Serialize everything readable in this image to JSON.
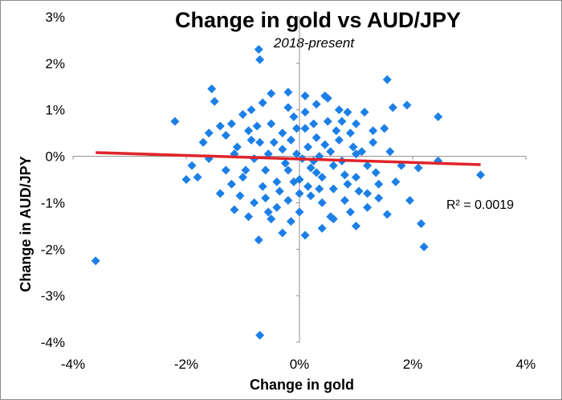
{
  "chart_data": {
    "type": "scatter",
    "title": "Change in gold vs AUD/JPY",
    "subtitle": "2018-present",
    "xlabel": "Change in gold",
    "ylabel": "Change in AUD/JPY",
    "xlim": [
      -4,
      4
    ],
    "ylim": [
      -4,
      3
    ],
    "x_ticks": [
      "-4%",
      "-2%",
      "0%",
      "2%",
      "4%"
    ],
    "y_ticks": [
      "3%",
      "2%",
      "1%",
      "0%",
      "-1%",
      "-2%",
      "-3%",
      "-4%"
    ],
    "grid": false,
    "marker_color": "#1c7fe6",
    "trendline": {
      "color": "#e0242a",
      "x": [
        -3.6,
        3.2
      ],
      "y": [
        0.08,
        -0.18
      ],
      "label": "R² = 0.0019"
    },
    "points": [
      [
        -3.6,
        -2.25
      ],
      [
        -2.2,
        0.75
      ],
      [
        -1.55,
        1.45
      ],
      [
        -1.5,
        1.18
      ],
      [
        -1.4,
        0.65
      ],
      [
        -1.15,
        -1.15
      ],
      [
        -0.72,
        2.3
      ],
      [
        -0.7,
        2.08
      ],
      [
        -0.72,
        -1.8
      ],
      [
        -0.7,
        -3.85
      ],
      [
        -0.5,
        -1.35
      ],
      [
        -0.3,
        -1.65
      ],
      [
        0.1,
        -1.7
      ],
      [
        0.4,
        -1.55
      ],
      [
        0.55,
        -1.3
      ],
      [
        1.0,
        -1.5
      ],
      [
        1.2,
        -1.1
      ],
      [
        1.55,
        1.65
      ],
      [
        1.5,
        0.6
      ],
      [
        1.65,
        1.05
      ],
      [
        1.9,
        1.1
      ],
      [
        1.95,
        -0.95
      ],
      [
        2.2,
        -1.95
      ],
      [
        2.15,
        -1.45
      ],
      [
        2.45,
        0.85
      ],
      [
        2.45,
        -0.1
      ],
      [
        3.2,
        -0.4
      ],
      [
        1.55,
        -1.25
      ],
      [
        1.4,
        -0.9
      ],
      [
        1.8,
        -0.2
      ],
      [
        -1.8,
        -0.45
      ],
      [
        -1.6,
        0.5
      ],
      [
        -1.3,
        0.45
      ],
      [
        -1.0,
        0.9
      ],
      [
        -0.85,
        1.0
      ],
      [
        -0.5,
        1.35
      ],
      [
        -0.2,
        1.38
      ],
      [
        0.1,
        1.3
      ],
      [
        0.3,
        1.12
      ],
      [
        0.5,
        1.25
      ],
      [
        0.7,
        1.0
      ],
      [
        1.0,
        0.7
      ],
      [
        1.3,
        0.3
      ],
      [
        -1.9,
        -0.2
      ],
      [
        -1.4,
        -0.8
      ],
      [
        -1.2,
        -0.6
      ],
      [
        -0.95,
        -0.3
      ],
      [
        -0.8,
        -1.0
      ],
      [
        -0.6,
        -0.9
      ],
      [
        -0.4,
        -1.1
      ],
      [
        -0.2,
        -0.95
      ],
      [
        0.0,
        -1.2
      ],
      [
        0.2,
        -0.85
      ],
      [
        0.4,
        -1.0
      ],
      [
        0.6,
        -0.7
      ],
      [
        0.8,
        -0.95
      ],
      [
        1.0,
        -0.45
      ],
      [
        1.2,
        -0.2
      ],
      [
        1.4,
        -0.6
      ],
      [
        -1.1,
        0.2
      ],
      [
        -0.9,
        0.55
      ],
      [
        -0.7,
        0.3
      ],
      [
        -0.5,
        0.7
      ],
      [
        -0.3,
        0.5
      ],
      [
        -0.1,
        0.85
      ],
      [
        0.1,
        0.6
      ],
      [
        0.3,
        0.4
      ],
      [
        0.5,
        0.75
      ],
      [
        0.7,
        0.35
      ],
      [
        0.9,
        0.5
      ],
      [
        1.1,
        0.1
      ],
      [
        -0.6,
        -0.3
      ],
      [
        -0.4,
        -0.55
      ],
      [
        -0.2,
        -0.3
      ],
      [
        0.0,
        -0.5
      ],
      [
        0.2,
        -0.25
      ],
      [
        0.4,
        -0.45
      ],
      [
        0.6,
        -0.2
      ],
      [
        0.8,
        -0.4
      ],
      [
        1.0,
        0.05
      ],
      [
        -0.8,
        -0.05
      ],
      [
        -0.55,
        0.05
      ],
      [
        -0.3,
        0.15
      ],
      [
        -0.05,
        0.05
      ],
      [
        0.15,
        0.2
      ],
      [
        0.35,
        0.0
      ],
      [
        0.55,
        0.1
      ],
      [
        0.75,
        -0.1
      ],
      [
        0.95,
        0.2
      ],
      [
        -1.0,
        -0.45
      ],
      [
        -0.25,
        -0.15
      ],
      [
        0.05,
        -0.05
      ],
      [
        0.25,
        -0.1
      ],
      [
        0.45,
        0.25
      ],
      [
        -0.45,
        0.3
      ],
      [
        -0.15,
        0.35
      ],
      [
        0.65,
        0.55
      ],
      [
        0.85,
        -0.6
      ],
      [
        -0.65,
        -0.65
      ],
      [
        -0.35,
        -0.75
      ],
      [
        0.15,
        -0.65
      ],
      [
        0.35,
        -0.7
      ],
      [
        -0.75,
        0.65
      ],
      [
        -0.05,
        0.6
      ],
      [
        0.25,
        0.7
      ],
      [
        1.2,
        -0.8
      ],
      [
        1.3,
        0.55
      ],
      [
        -1.2,
        0.7
      ],
      [
        -1.3,
        -0.3
      ],
      [
        0.9,
        -1.2
      ],
      [
        -0.9,
        -1.3
      ],
      [
        0.0,
        -0.8
      ],
      [
        0.1,
        0.95
      ],
      [
        -0.1,
        -0.55
      ],
      [
        0.3,
        -0.35
      ],
      [
        -1.6,
        -0.05
      ],
      [
        -1.7,
        0.3
      ],
      [
        -2.0,
        -0.5
      ],
      [
        1.6,
        0.1
      ],
      [
        1.7,
        -0.55
      ],
      [
        2.1,
        -0.25
      ],
      [
        -0.2,
        1.05
      ],
      [
        0.45,
        1.3
      ],
      [
        0.85,
        0.95
      ],
      [
        -0.65,
        1.15
      ],
      [
        1.15,
        0.95
      ],
      [
        -1.05,
        -0.85
      ],
      [
        -0.15,
        -1.4
      ],
      [
        0.6,
        -1.35
      ],
      [
        -0.55,
        -1.2
      ],
      [
        1.05,
        -0.75
      ],
      [
        -1.15,
        0.05
      ],
      [
        1.35,
        -0.35
      ],
      [
        0.75,
        0.75
      ],
      [
        -0.85,
        0.35
      ]
    ]
  }
}
